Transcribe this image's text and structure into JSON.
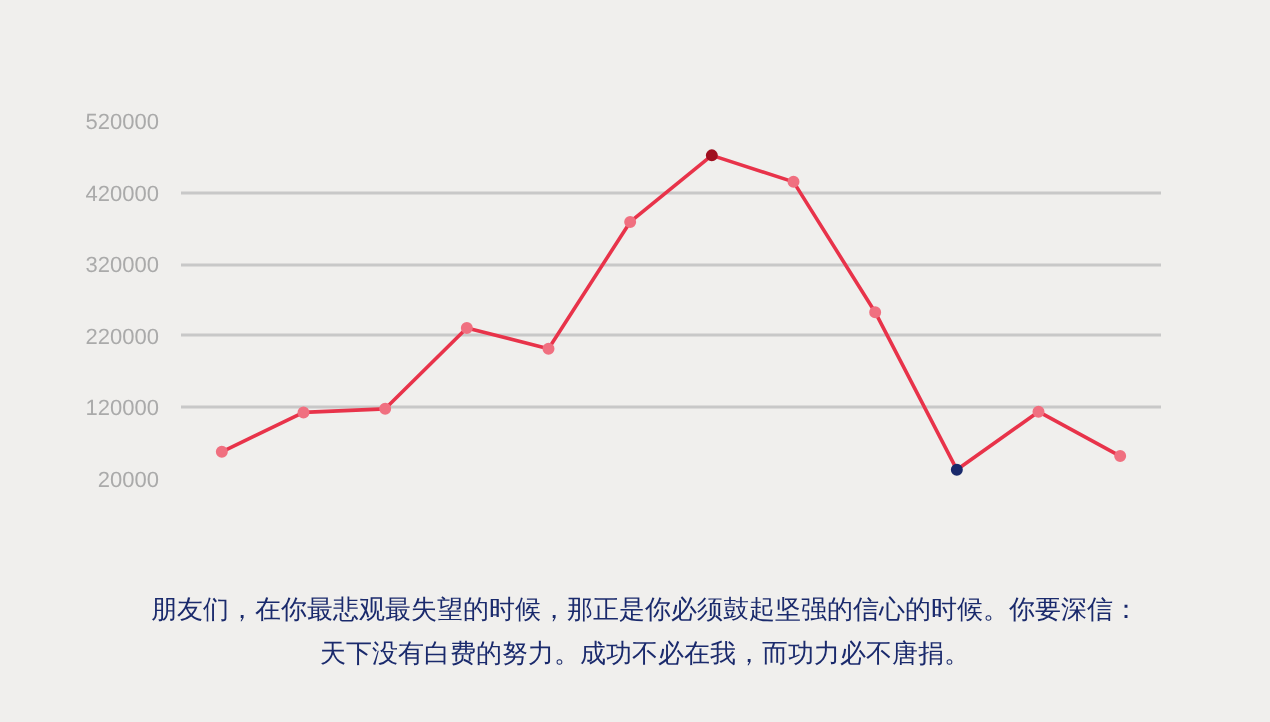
{
  "chart_data": {
    "type": "line",
    "categories": [
      null,
      null,
      null,
      null,
      null,
      null,
      null,
      null,
      null,
      null,
      null,
      null
    ],
    "series": [
      {
        "color": "#e8334a",
        "values": [
          58000,
          113000,
          118000,
          231000,
          202000,
          379000,
          472000,
          435000,
          253000,
          33000,
          114000,
          52000
        ],
        "colors": [
          "#f07080",
          "#f07080",
          "#f07080",
          "#f07080",
          "#f07080",
          "#f07080",
          "#a01020",
          "#f07080",
          "#f07080",
          "#1a2a6c",
          "#f07080",
          "#f07080"
        ]
      }
    ],
    "ylim": [
      20000,
      520000
    ],
    "yticks": [
      20000,
      120000,
      220000,
      320000,
      420000,
      520000
    ],
    "grid": "y",
    "marker": "circle",
    "line_style": "solid",
    "annotations": [
      "朋友们，在你最悲观最失望的时候，那正是你必须鼓起坚强的信心的时候。你要深信：天下没有白费的努力。成功不必在我，而功力必不唐捐。"
    ]
  }
}
